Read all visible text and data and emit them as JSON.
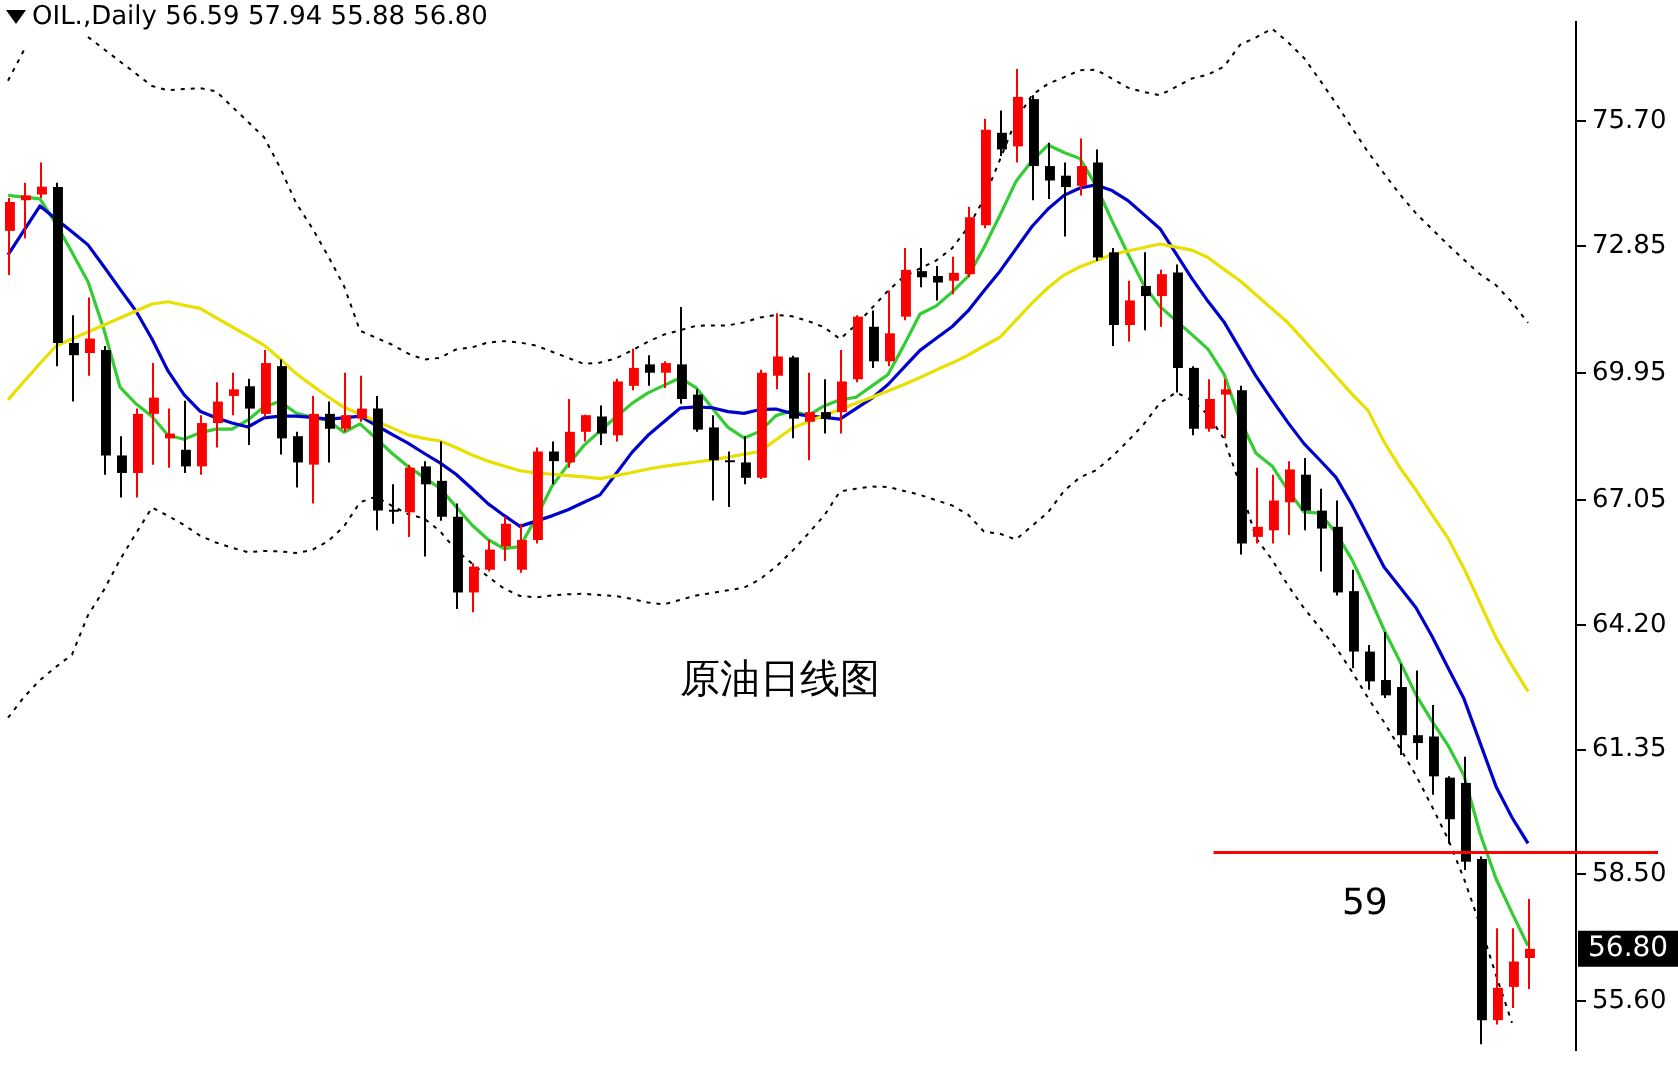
{
  "chart_data": {
    "type": "candlestick",
    "title": "原油日线图",
    "subtitle": "OIL.,Daily  56.59 57.94 55.88 56.80",
    "categories": [
      null,
      null,
      null,
      null,
      null,
      null,
      null,
      null,
      null,
      null,
      null,
      null,
      null,
      null,
      null,
      null,
      null,
      null,
      null,
      null,
      null,
      null,
      null,
      null,
      null,
      null,
      null,
      null,
      null,
      null,
      null,
      null,
      null,
      null,
      null,
      null,
      null,
      null,
      null,
      null,
      null,
      null,
      null,
      null,
      null,
      null,
      null,
      null,
      null,
      null,
      null,
      null,
      null,
      null,
      null,
      null,
      null,
      null,
      null,
      null,
      null,
      null,
      null,
      null,
      null,
      null,
      null,
      null,
      null,
      null,
      null,
      null,
      null,
      null,
      null,
      null,
      null,
      null,
      null,
      null,
      null,
      null,
      null,
      null,
      null,
      null,
      null,
      null,
      null,
      null,
      null,
      null,
      null,
      null,
      null,
      null
    ],
    "ohlc": [
      [
        73.2,
        73.95,
        72.19,
        73.86
      ],
      [
        73.9,
        74.3,
        73.03,
        74.01
      ],
      [
        74.03,
        74.76,
        73.95,
        74.21
      ],
      [
        74.2,
        74.3,
        70.11,
        70.64
      ],
      [
        70.64,
        71.27,
        69.3,
        70.36
      ],
      [
        70.41,
        71.68,
        69.89,
        70.74
      ],
      [
        70.48,
        70.57,
        67.63,
        68.07
      ],
      [
        68.07,
        68.51,
        67.11,
        67.67
      ],
      [
        67.67,
        69.14,
        67.11,
        69.02
      ],
      [
        69.02,
        70.18,
        67.86,
        69.39
      ],
      [
        68.46,
        69.14,
        67.79,
        68.57
      ],
      [
        68.2,
        69.32,
        67.67,
        67.82
      ],
      [
        67.82,
        68.99,
        67.63,
        68.81
      ],
      [
        68.81,
        69.74,
        68.25,
        69.3
      ],
      [
        69.43,
        69.96,
        68.99,
        69.58
      ],
      [
        69.65,
        69.82,
        68.31,
        69.14
      ],
      [
        69.02,
        70.48,
        68.95,
        70.18
      ],
      [
        70.11,
        70.26,
        68.09,
        68.46
      ],
      [
        68.51,
        68.61,
        67.34,
        67.91
      ],
      [
        67.86,
        69.43,
        66.97,
        69.02
      ],
      [
        69.02,
        69.3,
        67.91,
        68.68
      ],
      [
        68.68,
        69.96,
        68.61,
        68.99
      ],
      [
        68.91,
        69.89,
        68.84,
        69.14
      ],
      [
        69.14,
        69.43,
        66.36,
        66.81
      ],
      [
        66.83,
        67.41,
        66.51,
        66.79
      ],
      [
        66.77,
        67.86,
        66.21,
        67.79
      ],
      [
        67.82,
        67.94,
        65.76,
        67.41
      ],
      [
        67.49,
        68.39,
        66.58,
        66.67
      ],
      [
        66.67,
        66.97,
        64.56,
        64.94
      ],
      [
        64.94,
        65.61,
        64.49,
        65.53
      ],
      [
        65.46,
        66.14,
        65.42,
        65.92
      ],
      [
        65.99,
        66.67,
        65.66,
        66.51
      ],
      [
        65.46,
        66.51,
        65.39,
        66.14
      ],
      [
        66.14,
        68.25,
        66.06,
        68.16
      ],
      [
        68.16,
        68.39,
        67.41,
        67.94
      ],
      [
        67.91,
        69.36,
        67.79,
        68.61
      ],
      [
        68.61,
        69.0,
        68.39,
        68.99
      ],
      [
        68.96,
        69.21,
        68.31,
        68.57
      ],
      [
        68.53,
        69.82,
        68.39,
        69.76
      ],
      [
        69.66,
        70.51,
        69.56,
        70.07
      ],
      [
        70.15,
        70.36,
        69.66,
        69.96
      ],
      [
        69.96,
        70.22,
        69.61,
        70.18
      ],
      [
        70.15,
        71.46,
        69.25,
        69.36
      ],
      [
        69.46,
        69.58,
        68.61,
        68.66
      ],
      [
        68.71,
        68.99,
        67.04,
        67.96
      ],
      [
        67.96,
        68.16,
        66.89,
        67.92
      ],
      [
        67.91,
        68.51,
        67.41,
        67.56
      ],
      [
        67.56,
        70.03,
        67.53,
        69.96
      ],
      [
        69.89,
        71.32,
        69.58,
        70.33
      ],
      [
        70.31,
        70.35,
        68.46,
        68.91
      ],
      [
        68.84,
        69.96,
        67.96,
        69.06
      ],
      [
        69.06,
        69.81,
        68.57,
        68.91
      ],
      [
        69.06,
        70.48,
        68.57,
        69.76
      ],
      [
        69.81,
        71.27,
        69.74,
        71.24
      ],
      [
        71.01,
        71.38,
        70.07,
        70.22
      ],
      [
        70.22,
        71.84,
        70.11,
        70.86
      ],
      [
        71.24,
        72.81,
        71.16,
        72.31
      ],
      [
        72.28,
        72.81,
        71.91,
        72.14
      ],
      [
        72.17,
        72.4,
        71.61,
        72.02
      ],
      [
        72.06,
        72.61,
        71.75,
        72.24
      ],
      [
        72.21,
        73.75,
        72.14,
        73.51
      ],
      [
        73.33,
        75.76,
        73.26,
        75.51
      ],
      [
        75.44,
        75.95,
        74.91,
        75.06
      ],
      [
        75.13,
        76.9,
        74.76,
        76.26
      ],
      [
        76.21,
        76.3,
        73.9,
        74.68
      ],
      [
        74.68,
        75.21,
        73.93,
        74.35
      ],
      [
        74.46,
        74.76,
        73.07,
        74.2
      ],
      [
        74.23,
        75.31,
        74.01,
        74.68
      ],
      [
        74.76,
        75.06,
        72.51,
        72.59
      ],
      [
        72.71,
        72.81,
        70.57,
        71.05
      ],
      [
        71.05,
        72.06,
        70.67,
        71.61
      ],
      [
        71.94,
        72.71,
        70.93,
        71.71
      ],
      [
        71.71,
        72.31,
        71.01,
        72.21
      ],
      [
        72.25,
        72.43,
        69.51,
        70.07
      ],
      [
        70.07,
        70.11,
        68.53,
        68.68
      ],
      [
        68.68,
        69.81,
        68.61,
        69.36
      ],
      [
        69.46,
        69.81,
        68.46,
        69.58
      ],
      [
        69.56,
        69.66,
        65.81,
        66.06
      ],
      [
        66.21,
        67.79,
        66.06,
        66.44
      ],
      [
        66.36,
        67.63,
        66.06,
        67.04
      ],
      [
        67.0,
        67.94,
        66.25,
        67.75
      ],
      [
        67.63,
        68.01,
        66.36,
        66.81
      ],
      [
        66.81,
        67.31,
        65.42,
        66.4
      ],
      [
        66.44,
        67.04,
        64.87,
        64.94
      ],
      [
        64.97,
        65.46,
        63.21,
        63.59
      ],
      [
        63.59,
        63.74,
        62.72,
        62.91
      ],
      [
        62.94,
        64.04,
        62.53,
        62.59
      ],
      [
        62.78,
        63.31,
        61.23,
        61.68
      ],
      [
        61.68,
        63.16,
        61.12,
        61.5
      ],
      [
        61.65,
        62.37,
        60.32,
        60.74
      ],
      [
        60.71,
        60.74,
        59.2,
        59.76
      ],
      [
        60.59,
        61.19,
        58.6,
        58.79
      ],
      [
        58.85,
        58.91,
        54.62,
        55.17
      ],
      [
        55.17,
        57.27,
        55.07,
        55.91
      ],
      [
        55.93,
        57.27,
        55.45,
        56.51
      ],
      [
        56.59,
        57.94,
        55.88,
        56.8
      ]
    ],
    "colors": [
      "#ff0000",
      "#ff0000",
      "#ff0000",
      "#000000",
      "#000000",
      "#ff0000",
      "#000000",
      "#000000",
      "#ff0000",
      "#ff0000",
      "#ff0000",
      "#000000",
      "#ff0000",
      "#ff0000",
      "#ff0000",
      "#000000",
      "#ff0000",
      "#000000",
      "#000000",
      "#ff0000",
      "#000000",
      "#ff0000",
      "#ff0000",
      "#000000",
      "#000000",
      "#ff0000",
      "#000000",
      "#000000",
      "#000000",
      "#ff0000",
      "#ff0000",
      "#ff0000",
      "#ff0000",
      "#ff0000",
      "#000000",
      "#ff0000",
      "#ff0000",
      "#000000",
      "#ff0000",
      "#ff0000",
      "#000000",
      "#ff0000",
      "#000000",
      "#000000",
      "#000000",
      "#000000",
      "#000000",
      "#ff0000",
      "#ff0000",
      "#000000",
      "#ff0000",
      "#000000",
      "#ff0000",
      "#ff0000",
      "#000000",
      "#ff0000",
      "#ff0000",
      "#000000",
      "#000000",
      "#ff0000",
      "#ff0000",
      "#ff0000",
      "#000000",
      "#ff0000",
      "#000000",
      "#000000",
      "#000000",
      "#ff0000",
      "#000000",
      "#000000",
      "#ff0000",
      "#000000",
      "#ff0000",
      "#000000",
      "#000000",
      "#ff0000",
      "#ff0000",
      "#000000",
      "#ff0000",
      "#ff0000",
      "#ff0000",
      "#000000",
      "#000000",
      "#000000",
      "#000000",
      "#000000",
      "#000000",
      "#000000",
      "#000000",
      "#000000",
      "#000000",
      "#000000",
      "#000000",
      "#ff0000",
      "#ff0000",
      "#ff0000"
    ],
    "series": [
      {
        "type": "line",
        "color": "#e8e000",
        "values": [
          69.34,
          69.76,
          70.17,
          70.57,
          70.73,
          70.89,
          71.05,
          71.21,
          71.37,
          71.53,
          71.58,
          71.5,
          71.43,
          71.22,
          71.01,
          70.8,
          70.59,
          70.28,
          69.94,
          69.67,
          69.41,
          69.17,
          69.01,
          68.85,
          68.7,
          68.54,
          68.46,
          68.4,
          68.25,
          68.08,
          67.94,
          67.83,
          67.72,
          67.67,
          67.64,
          67.61,
          67.58,
          67.54,
          67.61,
          67.68,
          67.76,
          67.82,
          67.87,
          67.92,
          67.97,
          68.03,
          68.1,
          68.16,
          68.43,
          68.69,
          68.84,
          68.98,
          69.12,
          69.26,
          69.4,
          69.54,
          69.69,
          69.85,
          70.02,
          70.18,
          70.36,
          70.57,
          70.77,
          71.16,
          71.55,
          71.9,
          72.19,
          72.38,
          72.52,
          72.66,
          72.74,
          72.82,
          72.9,
          72.83,
          72.76,
          72.59,
          72.32,
          72.06,
          71.74,
          71.42,
          71.1,
          70.7,
          70.29,
          69.88,
          69.47,
          69.1,
          68.38,
          67.79,
          67.28,
          66.72,
          66.18,
          65.49,
          64.7,
          63.91,
          63.27,
          62.68
        ]
      },
      {
        "type": "line",
        "color": "#0000cc",
        "values": [
          72.65,
          73.21,
          73.77,
          73.47,
          73.18,
          72.88,
          72.38,
          71.87,
          71.37,
          70.73,
          70.0,
          69.46,
          69.08,
          68.93,
          68.81,
          68.72,
          68.93,
          68.97,
          68.97,
          68.94,
          68.9,
          68.93,
          68.97,
          68.76,
          68.55,
          68.35,
          68.12,
          67.9,
          67.64,
          67.31,
          66.97,
          66.7,
          66.45,
          66.57,
          66.69,
          66.83,
          67.0,
          67.17,
          67.65,
          68.14,
          68.53,
          68.84,
          69.15,
          69.18,
          69.16,
          69.07,
          69.03,
          69.12,
          69.13,
          69.03,
          68.97,
          68.94,
          68.9,
          69.14,
          69.38,
          69.69,
          70.08,
          70.47,
          70.74,
          71.01,
          71.37,
          71.83,
          72.28,
          72.79,
          73.3,
          73.7,
          74.01,
          74.18,
          74.25,
          74.12,
          73.89,
          73.57,
          73.25,
          72.68,
          72.11,
          71.59,
          71.12,
          70.5,
          69.88,
          69.34,
          68.82,
          68.34,
          67.96,
          67.57,
          66.94,
          66.23,
          65.52,
          65.06,
          64.59,
          63.94,
          63.22,
          62.51,
          61.51,
          60.51,
          59.8,
          59.21
        ]
      },
      {
        "type": "line",
        "color": "#33cc33",
        "values": [
          74.01,
          73.97,
          73.93,
          73.36,
          72.71,
          72.04,
          70.94,
          69.63,
          69.25,
          68.96,
          68.53,
          68.44,
          68.59,
          68.67,
          68.67,
          68.88,
          69.18,
          69.3,
          69.04,
          68.94,
          68.87,
          68.6,
          68.79,
          68.46,
          68.12,
          67.82,
          67.57,
          67.32,
          66.9,
          66.48,
          66.15,
          65.94,
          65.99,
          66.64,
          67.37,
          67.86,
          68.3,
          68.63,
          68.95,
          69.26,
          69.5,
          69.67,
          69.84,
          69.62,
          69.16,
          68.71,
          68.47,
          68.62,
          68.98,
          69.09,
          68.98,
          69.2,
          69.34,
          69.4,
          69.66,
          69.92,
          70.59,
          71.3,
          71.48,
          71.8,
          72.16,
          72.82,
          73.56,
          74.33,
          74.8,
          75.16,
          74.99,
          74.85,
          74.23,
          73.43,
          72.67,
          71.95,
          71.47,
          71.15,
          70.83,
          70.5,
          69.93,
          68.88,
          68.12,
          67.83,
          67.27,
          66.78,
          66.75,
          66.3,
          65.69,
          64.91,
          64.09,
          63.36,
          62.6,
          62.0,
          61.45,
          60.76,
          59.44,
          58.4,
          57.62,
          56.87
        ]
      },
      {
        "type": "line",
        "color": "#000000",
        "line_style": "dotted",
        "values": [
          76.63,
          77.33,
          null,
          null,
          null,
          77.63,
          77.35,
          77.07,
          76.79,
          76.51,
          76.41,
          76.44,
          76.46,
          76.39,
          76.04,
          75.69,
          75.34,
          74.65,
          73.84,
          73.27,
          72.63,
          71.94,
          70.92,
          70.76,
          70.6,
          70.4,
          70.26,
          70.3,
          70.49,
          70.54,
          70.65,
          70.68,
          70.65,
          70.58,
          70.44,
          70.3,
          70.16,
          70.19,
          70.29,
          70.47,
          70.67,
          70.83,
          70.93,
          71.03,
          71.04,
          71.04,
          71.11,
          71.22,
          71.28,
          71.25,
          71.14,
          71.0,
          70.73,
          71.05,
          71.44,
          71.83,
          72.16,
          72.34,
          72.52,
          72.8,
          73.28,
          73.93,
          74.83,
          75.73,
          76.3,
          76.56,
          76.71,
          76.87,
          76.88,
          76.68,
          76.47,
          76.37,
          76.3,
          76.49,
          76.68,
          76.77,
          76.95,
          77.45,
          77.62,
          77.82,
          77.51,
          77.15,
          76.64,
          76.11,
          75.55,
          75.0,
          74.51,
          74.03,
          73.6,
          73.24,
          72.88,
          72.54,
          72.21,
          71.96,
          71.57,
          71.1
        ]
      },
      {
        "type": "line",
        "color": "#000000",
        "line_style": "dotted",
        "values": [
          62.08,
          62.55,
          62.94,
          63.24,
          63.52,
          64.42,
          65.0,
          65.69,
          66.29,
          66.88,
          66.69,
          66.48,
          66.24,
          66.08,
          65.96,
          65.86,
          65.89,
          65.88,
          65.84,
          65.91,
          66.11,
          66.45,
          67.0,
          67.13,
          66.92,
          66.73,
          66.63,
          66.34,
          65.91,
          65.6,
          65.3,
          65.03,
          64.86,
          64.83,
          64.87,
          64.9,
          64.91,
          64.88,
          64.86,
          64.79,
          64.71,
          64.67,
          64.77,
          64.87,
          64.93,
          64.99,
          65.05,
          65.24,
          65.53,
          65.88,
          66.28,
          66.69,
          67.25,
          67.31,
          67.36,
          67.35,
          67.26,
          67.17,
          67.05,
          66.93,
          66.72,
          66.33,
          66.28,
          66.15,
          66.46,
          66.77,
          67.26,
          67.57,
          67.73,
          68.04,
          68.4,
          68.79,
          69.27,
          69.51,
          69.33,
          69.0,
          68.45,
          67.4,
          66.18,
          65.69,
          65.1,
          64.58,
          64.13,
          63.68,
          63.13,
          62.53,
          61.98,
          61.38,
          60.76,
          60.05,
          59.31,
          58.4,
          57.35,
          56.2,
          55.11,
          null
        ]
      }
    ],
    "ylim": [
      54.48,
      77.98
    ],
    "yticks": [
      {
        "value": 75.7,
        "label": "75.70"
      },
      {
        "value": 72.85,
        "label": "72.85"
      },
      {
        "value": 69.95,
        "label": "69.95"
      },
      {
        "value": 67.05,
        "label": "67.05"
      },
      {
        "value": 64.2,
        "label": "64.20"
      },
      {
        "value": 61.35,
        "label": "61.35"
      },
      {
        "value": 58.5,
        "label": "58.50"
      },
      {
        "value": 55.6,
        "label": "55.60"
      }
    ],
    "annotations": [
      "56.80"
    ],
    "ref_lines": [
      {
        "axis": "y",
        "value": 59,
        "label": "59",
        "color": "#ff0000"
      }
    ],
    "tick_labels": "y",
    "marker": "none"
  }
}
